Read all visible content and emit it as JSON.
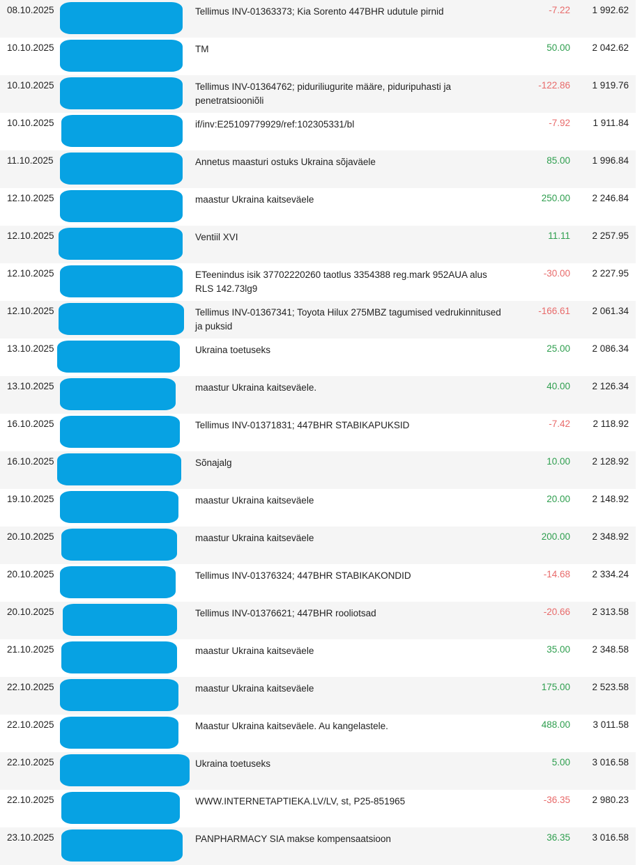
{
  "colors": {
    "negative": "#e86a6a",
    "positive": "#2e9e4e",
    "redaction": "#07a2e3",
    "row_alt": "#f5f5f5"
  },
  "transactions": [
    {
      "date": "08.10.2025",
      "description": "Tellimus INV-01363373; Kia Sorento 447BHR udutule pirnid",
      "amount": "-7.22",
      "balance": "1 992.62",
      "type": "neg"
    },
    {
      "date": "10.10.2025",
      "description": "TM",
      "amount": "50.00",
      "balance": "2 042.62",
      "type": "pos"
    },
    {
      "date": "10.10.2025",
      "description": "Tellimus INV-01364762; piduriliugurite määre, piduripuhasti ja penetratsiooniõli",
      "amount": "-122.86",
      "balance": "1 919.76",
      "type": "neg"
    },
    {
      "date": "10.10.2025",
      "description": "if/inv:E25109779929/ref:102305331/bl",
      "amount": "-7.92",
      "balance": "1 911.84",
      "type": "neg"
    },
    {
      "date": "11.10.2025",
      "description": "Annetus maasturi ostuks Ukraina sõjaväele",
      "amount": "85.00",
      "balance": "1 996.84",
      "type": "pos"
    },
    {
      "date": "12.10.2025",
      "description": "maastur Ukraina kaitseväele",
      "amount": "250.00",
      "balance": "2 246.84",
      "type": "pos"
    },
    {
      "date": "12.10.2025",
      "description": "Ventiil XVI",
      "amount": "11.11",
      "balance": "2 257.95",
      "type": "pos"
    },
    {
      "date": "12.10.2025",
      "description": "ETeenindus isik 37702220260 taotlus 3354388 reg.mark 952AUA alus RLS 142.73lg9",
      "amount": "-30.00",
      "balance": "2 227.95",
      "type": "neg"
    },
    {
      "date": "12.10.2025",
      "description": "Tellimus INV-01367341; Toyota Hilux 275MBZ tagumised vedrukinnitused ja puksid",
      "amount": "-166.61",
      "balance": "2 061.34",
      "type": "neg"
    },
    {
      "date": "13.10.2025",
      "description": "Ukraina toetuseks",
      "amount": "25.00",
      "balance": "2 086.34",
      "type": "pos"
    },
    {
      "date": "13.10.2025",
      "description": "maastur Ukraina kaitseväele.",
      "amount": "40.00",
      "balance": "2 126.34",
      "type": "pos"
    },
    {
      "date": "16.10.2025",
      "description": "Tellimus INV-01371831; 447BHR STABIKAPUKSID",
      "amount": "-7.42",
      "balance": "2 118.92",
      "type": "neg"
    },
    {
      "date": "16.10.2025",
      "description": "Sõnajalg",
      "amount": "10.00",
      "balance": "2 128.92",
      "type": "pos"
    },
    {
      "date": "19.10.2025",
      "description": "maastur Ukraina kaitseväele",
      "amount": "20.00",
      "balance": "2 148.92",
      "type": "pos"
    },
    {
      "date": "20.10.2025",
      "description": "maastur Ukraina kaitseväele",
      "amount": "200.00",
      "balance": "2 348.92",
      "type": "pos"
    },
    {
      "date": "20.10.2025",
      "description": "Tellimus INV-01376324; 447BHR STABIKAKONDID",
      "amount": "-14.68",
      "balance": "2 334.24",
      "type": "neg"
    },
    {
      "date": "20.10.2025",
      "description": "Tellimus INV-01376621; 447BHR rooliotsad",
      "amount": "-20.66",
      "balance": "2 313.58",
      "type": "neg"
    },
    {
      "date": "21.10.2025",
      "description": "maastur Ukraina kaitseväele",
      "amount": "35.00",
      "balance": "2 348.58",
      "type": "pos"
    },
    {
      "date": "22.10.2025",
      "description": "maastur Ukraina kaitseväele",
      "amount": "175.00",
      "balance": "2 523.58",
      "type": "pos"
    },
    {
      "date": "22.10.2025",
      "description": "Maastur Ukraina kaitseväele. Au kangelastele.",
      "amount": "488.00",
      "balance": "3 011.58",
      "type": "pos"
    },
    {
      "date": "22.10.2025",
      "description": "Ukraina toetuseks",
      "amount": "5.00",
      "balance": "3 016.58",
      "type": "pos"
    },
    {
      "date": "22.10.2025",
      "description": "WWW.INTERNETAPTIEKA.LV/LV, st, P25-851965",
      "amount": "-36.35",
      "balance": "2 980.23",
      "type": "neg"
    },
    {
      "date": "23.10.2025",
      "description": "PANPHARMACY SIA makse kompensaatsioon",
      "amount": "36.35",
      "balance": "3 016.58",
      "type": "pos"
    }
  ]
}
